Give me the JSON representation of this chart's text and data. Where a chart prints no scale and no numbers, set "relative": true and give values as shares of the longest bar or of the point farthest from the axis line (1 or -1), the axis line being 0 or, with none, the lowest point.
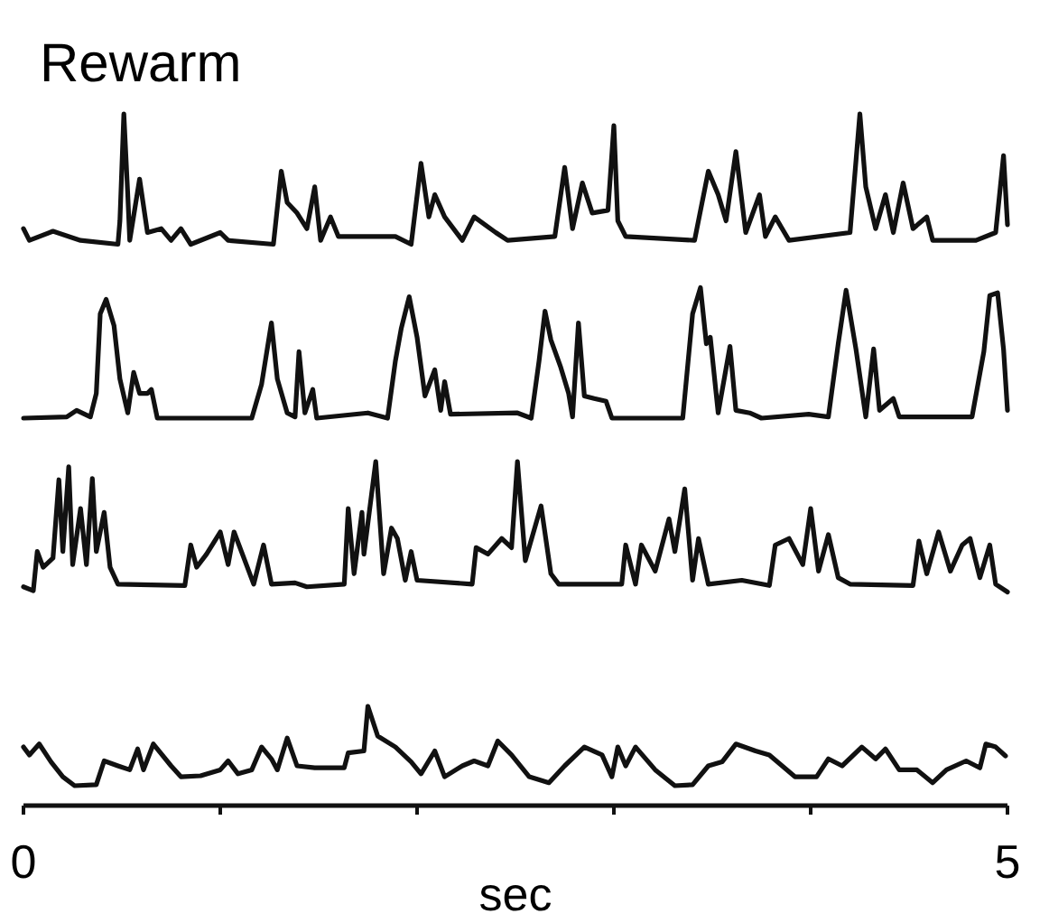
{
  "chart_data": [
    {
      "type": "line",
      "title": "Rewarm",
      "relative": true,
      "xlim": [
        0,
        5
      ],
      "series": [
        {
          "color": "#111111",
          "x": [
            0,
            0.03,
            0.15,
            0.29,
            0.48,
            0.49,
            0.51,
            0.53,
            0.54,
            0.59,
            0.63,
            0.7,
            0.75,
            0.8,
            0.85,
            1.0,
            1.04,
            1.27,
            1.31,
            1.34,
            1.39,
            1.44,
            1.48,
            1.51,
            1.56,
            1.6,
            1.89,
            1.97,
            2.02,
            2.06,
            2.09,
            2.14,
            2.23,
            2.29,
            2.4,
            2.46,
            2.7,
            2.75,
            2.79,
            2.84,
            2.89,
            2.97,
            3.0,
            3.02,
            3.06,
            3.41,
            3.48,
            3.53,
            3.57,
            3.62,
            3.67,
            3.74,
            3.77,
            3.82,
            3.89,
            4.2,
            4.25,
            4.28,
            4.33,
            4.38,
            4.42,
            4.47,
            4.52,
            4.59,
            4.62,
            4.84,
            4.94,
            4.98,
            5.0
          ],
          "values": [
            0.12,
            0.03,
            0.1,
            0.03,
            0,
            0.18,
            1,
            0.38,
            0.03,
            0.5,
            0.09,
            0.12,
            0.03,
            0.12,
            0,
            0.09,
            0.03,
            0,
            0.56,
            0.32,
            0.24,
            0.12,
            0.44,
            0.03,
            0.21,
            0.06,
            0.06,
            0,
            0.62,
            0.21,
            0.38,
            0.21,
            0.03,
            0.21,
            0.09,
            0.03,
            0.06,
            0.59,
            0.12,
            0.47,
            0.24,
            0.26,
            0.91,
            0.18,
            0.06,
            0.03,
            0.56,
            0.38,
            0.18,
            0.71,
            0.09,
            0.38,
            0.06,
            0.21,
            0.03,
            0.09,
            1,
            0.44,
            0.12,
            0.38,
            0.09,
            0.47,
            0.12,
            0.21,
            0.03,
            0.03,
            0.09,
            0.68,
            0.15
          ]
        }
      ]
    },
    {
      "type": "line",
      "relative": true,
      "xlim": [
        0,
        5
      ],
      "series": [
        {
          "color": "#111111",
          "x": [
            0,
            0.22,
            0.27,
            0.34,
            0.37,
            0.39,
            0.42,
            0.46,
            0.49,
            0.53,
            0.56,
            0.59,
            0.63,
            0.65,
            0.68,
            1.16,
            1.21,
            1.26,
            1.29,
            1.34,
            1.38,
            1.4,
            1.43,
            1.47,
            1.49,
            1.75,
            1.85,
            1.89,
            1.92,
            1.96,
            2.0,
            2.04,
            2.09,
            2.12,
            2.14,
            2.17,
            2.51,
            2.58,
            2.62,
            2.65,
            2.68,
            2.73,
            2.77,
            2.79,
            2.82,
            2.85,
            2.9,
            2.96,
            2.99,
            3.35,
            3.4,
            3.44,
            3.47,
            3.49,
            3.53,
            3.59,
            3.62,
            3.69,
            3.75,
            3.99,
            4.09,
            4.14,
            4.18,
            4.23,
            4.28,
            4.32,
            4.35,
            4.42,
            4.45,
            4.82,
            4.88,
            4.91,
            4.95,
            4.98,
            5.0
          ],
          "values": [
            0,
            0.01,
            0.06,
            0.01,
            0.19,
            0.8,
            0.91,
            0.71,
            0.3,
            0.04,
            0.35,
            0.19,
            0.19,
            0.22,
            0,
            0,
            0.26,
            0.73,
            0.3,
            0.04,
            0.01,
            0.51,
            0.04,
            0.22,
            0,
            0.04,
            0,
            0.44,
            0.69,
            0.93,
            0.62,
            0.17,
            0.37,
            0.06,
            0.28,
            0.03,
            0.04,
            0,
            0.44,
            0.82,
            0.6,
            0.39,
            0.19,
            0.01,
            0.73,
            0.17,
            0.15,
            0.13,
            0,
            0,
            0.8,
            1,
            0.57,
            0.62,
            0.04,
            0.55,
            0.06,
            0.04,
            0,
            0.03,
            0.01,
            0.57,
            0.98,
            0.53,
            0.01,
            0.53,
            0.06,
            0.15,
            0.01,
            0.01,
            0.51,
            0.94,
            0.96,
            0.53,
            0.06
          ]
        }
      ]
    },
    {
      "type": "line",
      "relative": true,
      "xlim": [
        0,
        5
      ],
      "series": [
        {
          "color": "#111111",
          "x": [
            0,
            0.05,
            0.07,
            0.1,
            0.15,
            0.18,
            0.2,
            0.23,
            0.25,
            0.29,
            0.32,
            0.35,
            0.37,
            0.41,
            0.44,
            0.48,
            0.82,
            0.85,
            0.88,
            0.93,
            1.0,
            1.04,
            1.07,
            1.12,
            1.17,
            1.22,
            1.26,
            1.38,
            1.44,
            1.63,
            1.65,
            1.68,
            1.72,
            1.73,
            1.79,
            1.83,
            1.87,
            1.9,
            1.94,
            1.97,
            2.0,
            2.28,
            2.3,
            2.36,
            2.43,
            2.48,
            2.51,
            2.55,
            2.63,
            2.68,
            2.72,
            3.04,
            3.06,
            3.11,
            3.14,
            3.21,
            3.28,
            3.31,
            3.36,
            3.4,
            3.43,
            3.48,
            3.65,
            3.79,
            3.82,
            3.89,
            3.96,
            4.0,
            4.04,
            4.09,
            4.14,
            4.2,
            4.52,
            4.55,
            4.59,
            4.65,
            4.71,
            4.77,
            4.81,
            4.86,
            4.91,
            4.94,
            5.0
          ],
          "values": [
            0.04,
            0.01,
            0.31,
            0.19,
            0.26,
            0.86,
            0.31,
            0.96,
            0.21,
            0.64,
            0.21,
            0.87,
            0.31,
            0.61,
            0.19,
            0.06,
            0.05,
            0.36,
            0.19,
            0.29,
            0.46,
            0.21,
            0.46,
            0.26,
            0.06,
            0.36,
            0.06,
            0.07,
            0.04,
            0.06,
            0.64,
            0.14,
            0.61,
            0.29,
            1,
            0.14,
            0.49,
            0.41,
            0.09,
            0.31,
            0.09,
            0.06,
            0.34,
            0.29,
            0.41,
            0.34,
            1,
            0.24,
            0.66,
            0.14,
            0.06,
            0.06,
            0.36,
            0.06,
            0.36,
            0.16,
            0.56,
            0.31,
            0.79,
            0.09,
            0.41,
            0.06,
            0.09,
            0.05,
            0.36,
            0.41,
            0.21,
            0.64,
            0.16,
            0.44,
            0.11,
            0.06,
            0.05,
            0.39,
            0.14,
            0.46,
            0.16,
            0.36,
            0.41,
            0.11,
            0.36,
            0.06,
            0
          ]
        }
      ]
    },
    {
      "type": "line",
      "relative": true,
      "xlabel": "sec",
      "xlim": [
        0,
        5
      ],
      "xticks": [
        0,
        {
          "value": 1,
          "label": null
        },
        {
          "value": 2,
          "label": null
        },
        {
          "value": 3,
          "label": null
        },
        {
          "value": 4,
          "label": null
        },
        5
      ],
      "series": [
        {
          "color": "#111111",
          "x": [
            0,
            0.03,
            0.08,
            0.14,
            0.2,
            0.26,
            0.37,
            0.41,
            0.48,
            0.54,
            0.58,
            0.61,
            0.66,
            0.75,
            0.8,
            0.9,
            1.0,
            1.04,
            1.09,
            1.16,
            1.21,
            1.26,
            1.29,
            1.34,
            1.39,
            1.48,
            1.63,
            1.65,
            1.73,
            1.75,
            1.8,
            1.89,
            1.97,
            2.02,
            2.09,
            2.14,
            2.23,
            2.29,
            2.36,
            2.41,
            2.48,
            2.57,
            2.67,
            2.75,
            2.85,
            2.94,
            2.99,
            3.02,
            3.06,
            3.11,
            3.21,
            3.31,
            3.4,
            3.48,
            3.55,
            3.62,
            3.72,
            3.79,
            3.92,
            4.03,
            4.09,
            4.16,
            4.26,
            4.33,
            4.38,
            4.45,
            4.54,
            4.62,
            4.69,
            4.79,
            4.86,
            4.89,
            4.94,
            4.99
          ],
          "values": [
            0.59,
            0.51,
            0.62,
            0.44,
            0.29,
            0.2,
            0.21,
            0.45,
            0.4,
            0.36,
            0.57,
            0.36,
            0.62,
            0.4,
            0.29,
            0.3,
            0.36,
            0.45,
            0.32,
            0.36,
            0.59,
            0.47,
            0.36,
            0.68,
            0.4,
            0.38,
            0.38,
            0.53,
            0.55,
            1,
            0.7,
            0.59,
            0.44,
            0.32,
            0.55,
            0.29,
            0.4,
            0.45,
            0.4,
            0.65,
            0.51,
            0.29,
            0.23,
            0.4,
            0.59,
            0.51,
            0.29,
            0.59,
            0.4,
            0.59,
            0.36,
            0.2,
            0.21,
            0.4,
            0.44,
            0.62,
            0.55,
            0.51,
            0.29,
            0.29,
            0.47,
            0.4,
            0.59,
            0.47,
            0.57,
            0.36,
            0.36,
            0.23,
            0.36,
            0.45,
            0.38,
            0.62,
            0.59,
            0.5
          ]
        }
      ]
    }
  ]
}
